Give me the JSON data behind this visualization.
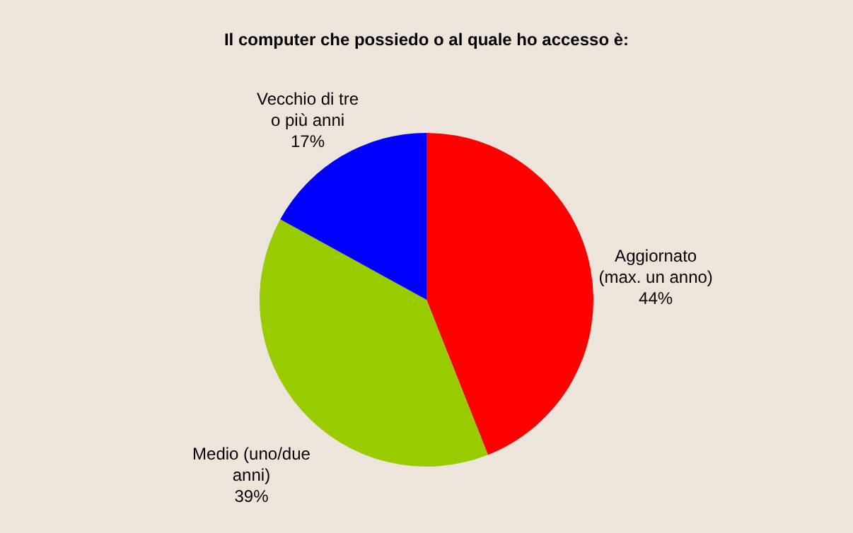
{
  "chart_data": {
    "type": "pie",
    "title": "Il computer che possiedo o al quale ho accesso è:",
    "categories": [
      "Aggiornato (max. un anno)",
      "Medio (uno/due anni)",
      "Vecchio di tre o più anni"
    ],
    "values": [
      44,
      39,
      17
    ],
    "value_labels": [
      "44%",
      "39%",
      "17%"
    ],
    "colors": [
      "#ff0000",
      "#99cc00",
      "#0000ff"
    ]
  }
}
